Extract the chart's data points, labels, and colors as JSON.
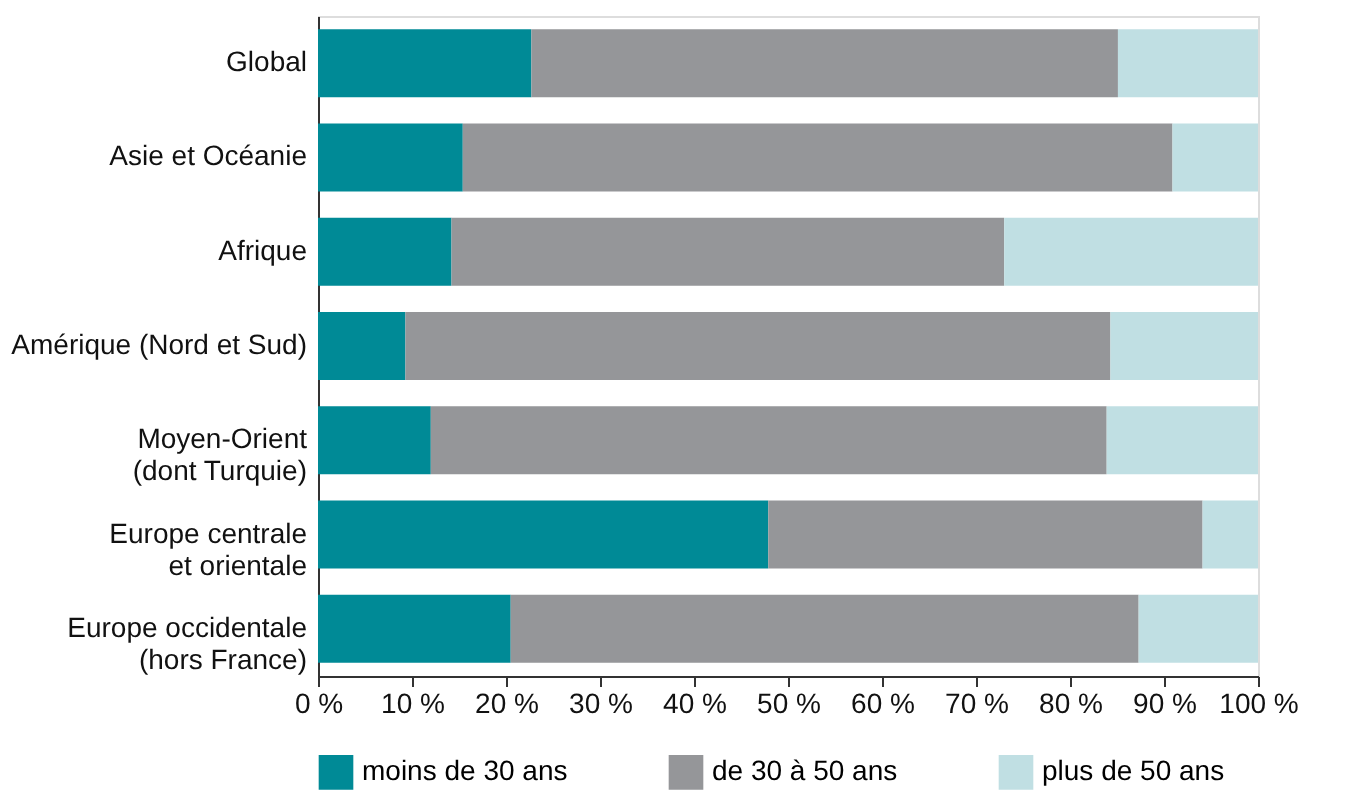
{
  "chart_data": {
    "type": "bar",
    "orientation": "horizontal",
    "stacked": true,
    "categories": [
      "Global",
      "Asie et Océanie",
      "Afrique",
      "Amérique (Nord et Sud)",
      "Moyen-Orient\n(dont Turquie)",
      "Europe centrale\net orientale",
      "Europe occidentale\n(hors France)"
    ],
    "series": [
      {
        "name": "moins de 30 ans",
        "color": "#008a96",
        "values": [
          22.7,
          15.4,
          14.2,
          9.3,
          12.0,
          47.9,
          20.5
        ]
      },
      {
        "name": "de 30 à 50 ans",
        "color": "#959699",
        "values": [
          62.4,
          75.5,
          58.8,
          75.0,
          71.9,
          46.2,
          66.8
        ]
      },
      {
        "name": "plus de 50 ans",
        "color": "#c0dfe3",
        "values": [
          14.9,
          9.1,
          27.0,
          15.7,
          16.1,
          5.9,
          12.7
        ]
      }
    ],
    "xlim": [
      0,
      100
    ],
    "xticks": [
      {
        "value": 0,
        "label": "0 %"
      },
      {
        "value": 10,
        "label": "10 %"
      },
      {
        "value": 20,
        "label": "20 %"
      },
      {
        "value": 30,
        "label": "30 %"
      },
      {
        "value": 40,
        "label": "40 %"
      },
      {
        "value": 50,
        "label": "50 %"
      },
      {
        "value": 60,
        "label": "60 %"
      },
      {
        "value": 70,
        "label": "70 %"
      },
      {
        "value": 80,
        "label": "80 %"
      },
      {
        "value": 90,
        "label": "90 %"
      },
      {
        "value": 100,
        "label": "100 %"
      }
    ],
    "grid": false,
    "legend": "bottom"
  }
}
